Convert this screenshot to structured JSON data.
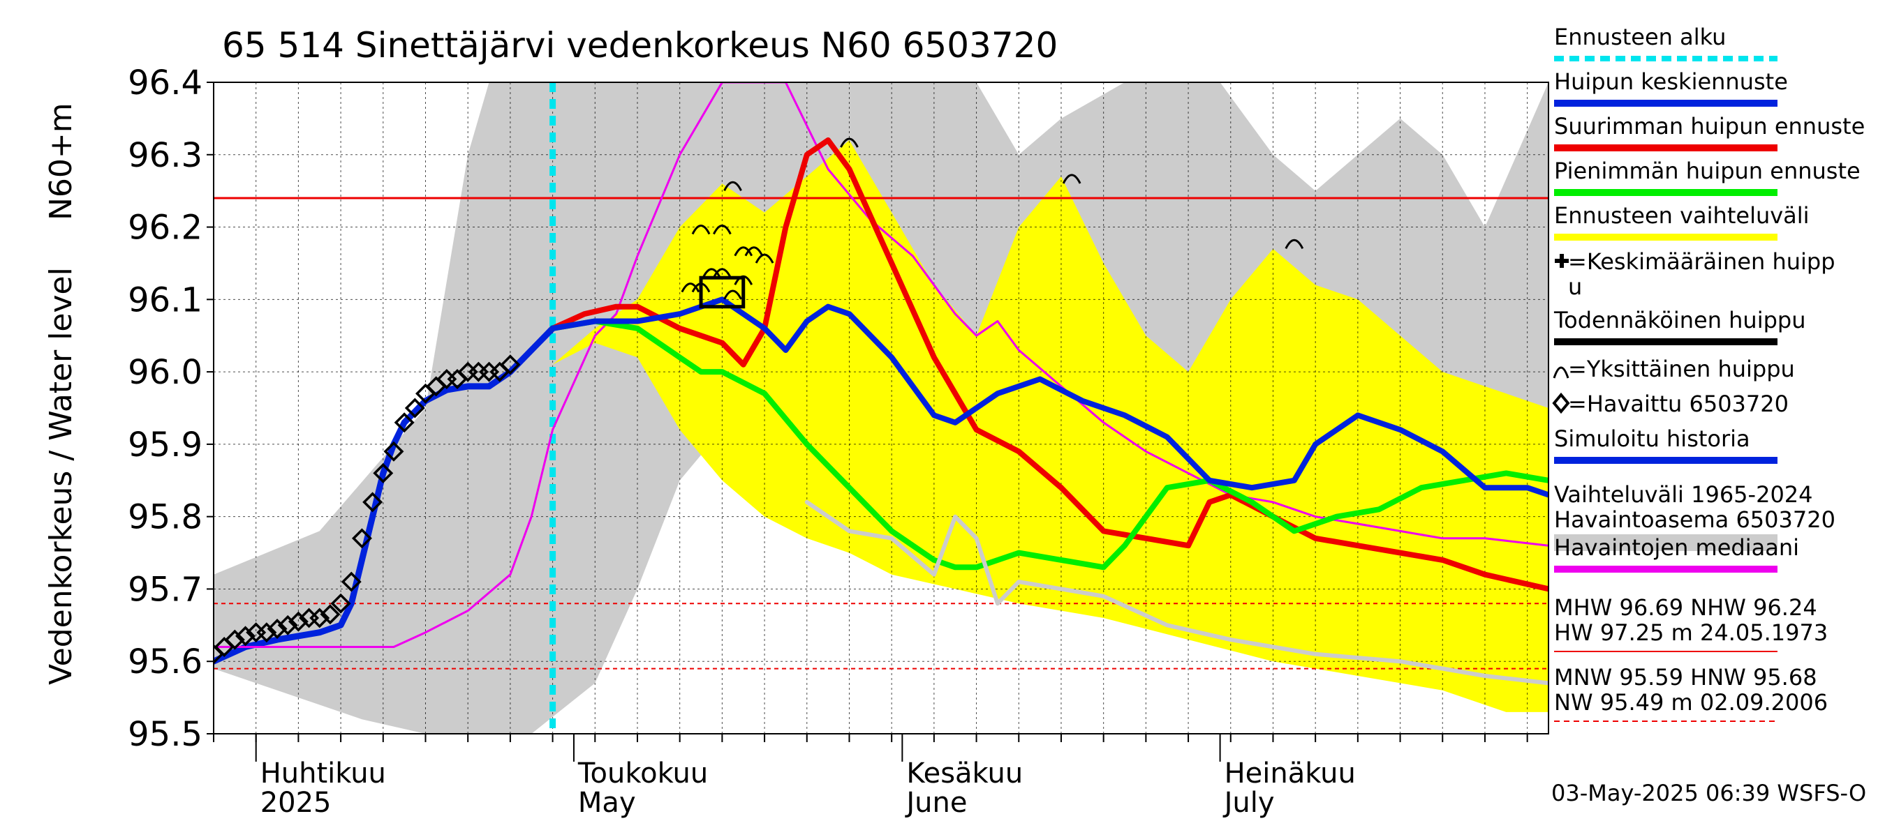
{
  "title": "65 514 Sinettäjärvi vedenkorkeus N60 6503720",
  "ylabel_main": "Vedenkorkeus / Water level",
  "ylabel_unit": "N60+m",
  "footer": "03-May-2025 06:39 WSFS-O",
  "months": [
    {
      "fi": "Huhtikuu",
      "en": "2025"
    },
    {
      "fi": "Toukokuu",
      "en": "May"
    },
    {
      "fi": "Kesäkuu",
      "en": "June"
    },
    {
      "fi": "Heinäkuu",
      "en": "July"
    }
  ],
  "legend": [
    {
      "label": "Ennusteen alku",
      "color": "#00e5ee",
      "style": "dash"
    },
    {
      "label": "Huipun keskiennuste",
      "color": "#0022dd",
      "style": "line"
    },
    {
      "label": "Suurimman huipun ennuste",
      "color": "#ee0000",
      "style": "line"
    },
    {
      "label": "Pienimmän huipun ennuste",
      "color": "#00ee00",
      "style": "line"
    },
    {
      "label": "Ennusteen vaihteluväli",
      "color": "#ffff00",
      "style": "line"
    },
    {
      "label": "=Keskimääräinen huipp",
      "label2": "u",
      "color": "#000000",
      "style": "plus"
    },
    {
      "label": "Todennäköinen huippu",
      "color": "#000000",
      "style": "line"
    },
    {
      "label": "=Yksittäinen huippu",
      "color": "#000000",
      "style": "arc"
    },
    {
      "label": "=Havaittu 6503720",
      "color": "#000000",
      "style": "diamond"
    },
    {
      "label": "Simuloitu historia",
      "color": "#0022dd",
      "style": "line"
    },
    {
      "label": "Vaihteluväli 1965-2024",
      "label2": " Havaintoasema 6503720",
      "color": "#cccccc",
      "style": "band"
    },
    {
      "label": "Havaintojen mediaani",
      "color": "#ee00ee",
      "style": "line"
    }
  ],
  "stats": {
    "upper1": "MHW  96.69 NHW  96.24",
    "upper2": "HW  97.25 m 24.05.1973",
    "lower1": "MNW  95.59 HNW  95.68",
    "lower2": "NW  95.49 m 02.09.2006"
  },
  "chart_data": {
    "type": "line",
    "title": "65 514 Sinettäjärvi vedenkorkeus N60 6503720",
    "ylabel": "Vedenkorkeus / Water level N60+m",
    "ylim": [
      95.5,
      96.4
    ],
    "yticks": [
      "95.5",
      "95.6",
      "95.7",
      "95.8",
      "95.9",
      "96.0",
      "96.1",
      "96.2",
      "96.3",
      "96.4"
    ],
    "x_unit": "day index from 2025-03-28",
    "xlim": [
      0,
      126
    ],
    "grid": true,
    "legend_position": "right",
    "forecast_start_day": 32,
    "reference_lines": [
      {
        "name": "NHW",
        "value": 96.24,
        "style": "solid",
        "color": "#ee0000"
      },
      {
        "name": "HNW",
        "value": 95.68,
        "style": "dotted",
        "color": "#ee0000"
      },
      {
        "name": "MNW",
        "value": 95.59,
        "style": "dotted",
        "color": "#ee0000"
      }
    ],
    "history_band": {
      "name": "Vaihteluväli 1965-2024",
      "upper": [
        [
          0,
          95.72
        ],
        [
          10,
          95.78
        ],
        [
          20,
          95.95
        ],
        [
          24,
          96.3
        ],
        [
          26,
          96.4
        ],
        [
          126,
          96.4
        ]
      ],
      "upper_tail": [
        [
          72,
          96.4
        ],
        [
          76,
          96.3
        ],
        [
          80,
          96.35
        ],
        [
          86,
          96.4
        ],
        [
          95,
          96.4
        ],
        [
          100,
          96.3
        ],
        [
          104,
          96.25
        ],
        [
          108,
          96.3
        ],
        [
          112,
          96.35
        ],
        [
          116,
          96.3
        ],
        [
          120,
          96.2
        ],
        [
          126,
          96.1
        ]
      ],
      "lower": [
        [
          0,
          95.59
        ],
        [
          14,
          95.52
        ],
        [
          20,
          95.5
        ],
        [
          30,
          95.5
        ],
        [
          36,
          95.57
        ],
        [
          40,
          95.7
        ],
        [
          44,
          95.85
        ],
        [
          48,
          95.92
        ],
        [
          52,
          95.95
        ],
        [
          56,
          95.98
        ],
        [
          60,
          95.9
        ],
        [
          66,
          95.86
        ],
        [
          72,
          95.82
        ],
        [
          78,
          95.78
        ],
        [
          86,
          95.73
        ],
        [
          96,
          95.7
        ],
        [
          104,
          95.67
        ],
        [
          112,
          95.63
        ],
        [
          120,
          95.59
        ],
        [
          126,
          95.57
        ]
      ]
    },
    "forecast_band": {
      "name": "Ennusteen vaihteluväli",
      "upper": [
        [
          32,
          96.01
        ],
        [
          36,
          96.06
        ],
        [
          40,
          96.1
        ],
        [
          44,
          96.2
        ],
        [
          48,
          96.26
        ],
        [
          52,
          96.22
        ],
        [
          56,
          96.27
        ],
        [
          60,
          96.32
        ],
        [
          64,
          96.22
        ],
        [
          68,
          96.12
        ],
        [
          72,
          96.05
        ],
        [
          76,
          96.2
        ],
        [
          80,
          96.27
        ],
        [
          84,
          96.15
        ],
        [
          88,
          96.05
        ],
        [
          92,
          96.0
        ],
        [
          96,
          96.1
        ],
        [
          100,
          96.17
        ],
        [
          104,
          96.12
        ],
        [
          108,
          96.1
        ],
        [
          112,
          96.05
        ],
        [
          116,
          96.0
        ],
        [
          120,
          95.98
        ],
        [
          126,
          95.95
        ]
      ],
      "lower": [
        [
          32,
          96.01
        ],
        [
          36,
          96.04
        ],
        [
          40,
          96.02
        ],
        [
          44,
          95.92
        ],
        [
          48,
          95.85
        ],
        [
          52,
          95.8
        ],
        [
          56,
          95.77
        ],
        [
          60,
          95.75
        ],
        [
          64,
          95.72
        ],
        [
          70,
          95.7
        ],
        [
          76,
          95.68
        ],
        [
          84,
          95.66
        ],
        [
          92,
          95.63
        ],
        [
          100,
          95.6
        ],
        [
          108,
          95.58
        ],
        [
          116,
          95.56
        ],
        [
          122,
          95.53
        ],
        [
          126,
          95.53
        ]
      ]
    },
    "series": [
      {
        "name": "Havaittu 6503720",
        "color": "#000000",
        "marker": "diamond",
        "values": [
          [
            0,
            95.61
          ],
          [
            1,
            95.62
          ],
          [
            2,
            95.63
          ],
          [
            3,
            95.635
          ],
          [
            4,
            95.64
          ],
          [
            5,
            95.64
          ],
          [
            6,
            95.645
          ],
          [
            7,
            95.65
          ],
          [
            8,
            95.655
          ],
          [
            9,
            95.66
          ],
          [
            10,
            95.66
          ],
          [
            11,
            95.665
          ],
          [
            12,
            95.68
          ],
          [
            13,
            95.71
          ],
          [
            14,
            95.77
          ],
          [
            15,
            95.82
          ],
          [
            16,
            95.86
          ],
          [
            17,
            95.89
          ],
          [
            18,
            95.93
          ],
          [
            19,
            95.95
          ],
          [
            20,
            95.97
          ],
          [
            21,
            95.98
          ],
          [
            22,
            95.99
          ],
          [
            23,
            95.99
          ],
          [
            24,
            96.0
          ],
          [
            25,
            96.0
          ],
          [
            26,
            96.0
          ],
          [
            27,
            96.0
          ],
          [
            28,
            96.01
          ]
        ]
      },
      {
        "name": "Simuloitu historia",
        "color": "#0022dd",
        "width": 9,
        "values": [
          [
            0,
            95.6
          ],
          [
            3,
            95.62
          ],
          [
            6,
            95.63
          ],
          [
            10,
            95.64
          ],
          [
            12,
            95.65
          ],
          [
            13,
            95.68
          ],
          [
            14,
            95.74
          ],
          [
            15,
            95.8
          ],
          [
            16,
            95.86
          ],
          [
            17,
            95.9
          ],
          [
            18,
            95.93
          ],
          [
            20,
            95.96
          ],
          [
            22,
            95.975
          ],
          [
            24,
            95.98
          ],
          [
            26,
            95.98
          ],
          [
            28,
            96.0
          ],
          [
            30,
            96.03
          ],
          [
            32,
            96.06
          ]
        ]
      },
      {
        "name": "Havaintojen mediaani",
        "color": "#ee00ee",
        "width": 3,
        "values": [
          [
            0,
            95.62
          ],
          [
            17,
            95.62
          ],
          [
            20,
            95.64
          ],
          [
            24,
            95.67
          ],
          [
            28,
            95.72
          ],
          [
            30,
            95.8
          ],
          [
            32,
            95.92
          ],
          [
            36,
            96.05
          ],
          [
            38,
            96.08
          ],
          [
            40,
            96.16
          ],
          [
            44,
            96.3
          ],
          [
            48,
            96.4
          ],
          [
            54,
            96.4
          ],
          [
            58,
            96.28
          ],
          [
            62,
            96.21
          ],
          [
            66,
            96.16
          ],
          [
            70,
            96.08
          ],
          [
            72,
            96.05
          ],
          [
            74,
            96.07
          ],
          [
            76,
            96.03
          ],
          [
            80,
            95.98
          ],
          [
            84,
            95.93
          ],
          [
            88,
            95.89
          ],
          [
            92,
            95.86
          ],
          [
            96,
            95.83
          ],
          [
            100,
            95.82
          ],
          [
            104,
            95.8
          ],
          [
            108,
            95.79
          ],
          [
            112,
            95.78
          ],
          [
            116,
            95.77
          ],
          [
            120,
            95.77
          ],
          [
            126,
            95.76
          ]
        ]
      },
      {
        "name": "Suurimman huipun ennuste",
        "color": "#ee0000",
        "width": 8,
        "values": [
          [
            32,
            96.06
          ],
          [
            35,
            96.08
          ],
          [
            38,
            96.09
          ],
          [
            40,
            96.09
          ],
          [
            44,
            96.06
          ],
          [
            48,
            96.04
          ],
          [
            50,
            96.01
          ],
          [
            52,
            96.06
          ],
          [
            54,
            96.2
          ],
          [
            56,
            96.3
          ],
          [
            58,
            96.32
          ],
          [
            60,
            96.28
          ],
          [
            64,
            96.15
          ],
          [
            68,
            96.02
          ],
          [
            72,
            95.92
          ],
          [
            76,
            95.89
          ],
          [
            80,
            95.84
          ],
          [
            84,
            95.78
          ],
          [
            88,
            95.77
          ],
          [
            92,
            95.76
          ],
          [
            94,
            95.82
          ],
          [
            96,
            95.83
          ],
          [
            100,
            95.8
          ],
          [
            104,
            95.77
          ],
          [
            108,
            95.76
          ],
          [
            112,
            95.75
          ],
          [
            116,
            95.74
          ],
          [
            120,
            95.72
          ],
          [
            126,
            95.7
          ]
        ]
      },
      {
        "name": "Pienimmän huipun ennuste",
        "color": "#00ee00",
        "width": 8,
        "values": [
          [
            32,
            96.06
          ],
          [
            36,
            96.07
          ],
          [
            40,
            96.06
          ],
          [
            44,
            96.02
          ],
          [
            46,
            96.0
          ],
          [
            48,
            96.0
          ],
          [
            52,
            95.97
          ],
          [
            56,
            95.9
          ],
          [
            60,
            95.84
          ],
          [
            64,
            95.78
          ],
          [
            68,
            95.74
          ],
          [
            70,
            95.73
          ],
          [
            72,
            95.73
          ],
          [
            76,
            95.75
          ],
          [
            80,
            95.74
          ],
          [
            84,
            95.73
          ],
          [
            86,
            95.76
          ],
          [
            90,
            95.84
          ],
          [
            94,
            95.85
          ],
          [
            98,
            95.82
          ],
          [
            102,
            95.78
          ],
          [
            106,
            95.8
          ],
          [
            110,
            95.81
          ],
          [
            114,
            95.84
          ],
          [
            118,
            95.85
          ],
          [
            122,
            95.86
          ],
          [
            126,
            95.85
          ]
        ]
      },
      {
        "name": "Huipun keskiennuste",
        "color": "#0022dd",
        "width": 8,
        "values": [
          [
            32,
            96.06
          ],
          [
            36,
            96.07
          ],
          [
            40,
            96.07
          ],
          [
            44,
            96.08
          ],
          [
            48,
            96.1
          ],
          [
            52,
            96.06
          ],
          [
            54,
            96.03
          ],
          [
            56,
            96.07
          ],
          [
            58,
            96.09
          ],
          [
            60,
            96.08
          ],
          [
            64,
            96.02
          ],
          [
            68,
            95.94
          ],
          [
            70,
            95.93
          ],
          [
            74,
            95.97
          ],
          [
            78,
            95.99
          ],
          [
            82,
            95.96
          ],
          [
            86,
            95.94
          ],
          [
            90,
            95.91
          ],
          [
            94,
            95.85
          ],
          [
            98,
            95.84
          ],
          [
            102,
            95.85
          ],
          [
            104,
            95.9
          ],
          [
            108,
            95.94
          ],
          [
            112,
            95.92
          ],
          [
            116,
            95.89
          ],
          [
            120,
            95.84
          ],
          [
            124,
            95.84
          ],
          [
            126,
            95.83
          ]
        ]
      },
      {
        "name": "Vaihteluväli 1965-2024 lower trace",
        "color": "#cccccc",
        "width": 6,
        "values": [
          [
            56,
            95.82
          ],
          [
            60,
            95.78
          ],
          [
            64,
            95.77
          ],
          [
            68,
            95.72
          ],
          [
            70,
            95.8
          ],
          [
            72,
            95.77
          ],
          [
            74,
            95.68
          ],
          [
            76,
            95.71
          ],
          [
            80,
            95.7
          ],
          [
            84,
            95.69
          ],
          [
            90,
            95.65
          ],
          [
            96,
            95.63
          ],
          [
            104,
            95.61
          ],
          [
            112,
            95.6
          ],
          [
            120,
            95.58
          ],
          [
            126,
            95.57
          ]
        ]
      }
    ],
    "peaks": [
      {
        "label": "Yksittäinen huippu",
        "points": [
          [
            49,
            96.26
          ],
          [
            48,
            96.2
          ],
          [
            46,
            96.2
          ],
          [
            50,
            96.17
          ],
          [
            51,
            96.17
          ],
          [
            52,
            96.16
          ],
          [
            48,
            96.14
          ],
          [
            47,
            96.14
          ],
          [
            50,
            96.13
          ],
          [
            46,
            96.12
          ],
          [
            45,
            96.12
          ],
          [
            49,
            96.11
          ],
          [
            60,
            96.32
          ],
          [
            81,
            96.27
          ],
          [
            102,
            96.18
          ]
        ]
      }
    ],
    "likely_peak_box": [
      [
        46,
        96.09
      ],
      [
        50,
        96.13
      ]
    ]
  }
}
